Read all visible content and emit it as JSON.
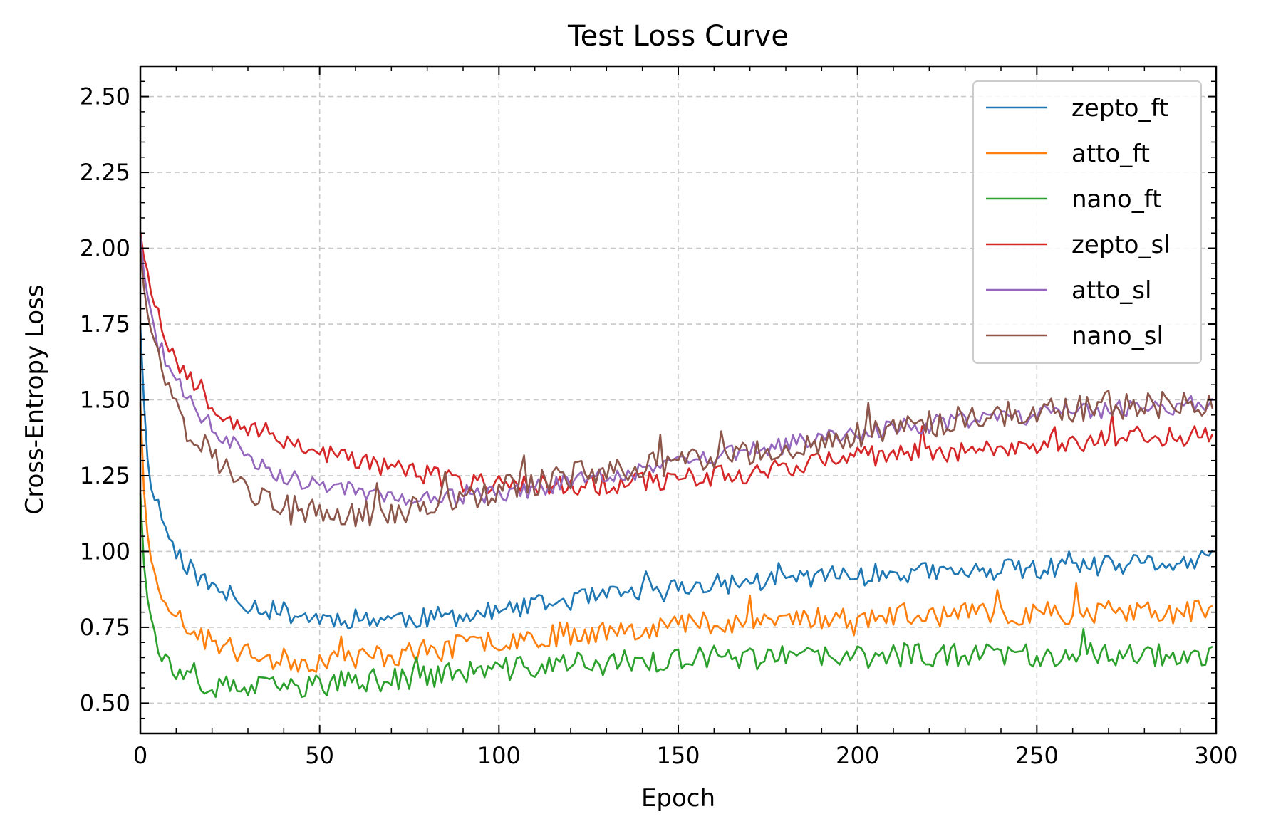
{
  "chart_data": {
    "type": "line",
    "title": "Test Loss Curve",
    "xlabel": "Epoch",
    "ylabel": "Cross-Entropy Loss",
    "xlim": [
      0,
      300
    ],
    "ylim": [
      0.4,
      2.6
    ],
    "xticks": [
      0,
      50,
      100,
      150,
      200,
      250,
      300
    ],
    "xtick_labels": [
      "0",
      "50",
      "100",
      "150",
      "200",
      "250",
      "300"
    ],
    "yticks": [
      0.5,
      0.75,
      1.0,
      1.25,
      1.5,
      1.75,
      2.0,
      2.25,
      2.5
    ],
    "ytick_labels": [
      "0.50",
      "0.75",
      "1.00",
      "1.25",
      "1.50",
      "1.75",
      "2.00",
      "2.25",
      "2.50"
    ],
    "grid": true,
    "legend_position": "upper right",
    "series": [
      {
        "name": "zepto_ft",
        "color": "#1f77b4",
        "noise": 0.035,
        "seed": 11,
        "x": [
          0,
          1,
          2,
          3,
          4,
          5,
          7,
          9,
          12,
          15,
          20,
          25,
          30,
          35,
          40,
          50,
          60,
          70,
          80,
          90,
          100,
          110,
          120,
          130,
          140,
          150,
          160,
          170,
          180,
          190,
          200,
          210,
          220,
          230,
          240,
          250,
          260,
          270,
          280,
          290,
          299
        ],
        "y": [
          1.75,
          1.5,
          1.3,
          1.22,
          1.18,
          1.15,
          1.08,
          1.02,
          0.97,
          0.93,
          0.88,
          0.85,
          0.83,
          0.81,
          0.8,
          0.78,
          0.78,
          0.78,
          0.78,
          0.79,
          0.8,
          0.82,
          0.84,
          0.85,
          0.87,
          0.88,
          0.89,
          0.9,
          0.91,
          0.92,
          0.92,
          0.93,
          0.93,
          0.93,
          0.94,
          0.94,
          0.95,
          0.95,
          0.96,
          0.96,
          0.97
        ]
      },
      {
        "name": "atto_ft",
        "color": "#ff7f0e",
        "noise": 0.04,
        "seed": 23,
        "x": [
          0,
          1,
          2,
          3,
          4,
          5,
          7,
          9,
          12,
          15,
          20,
          25,
          30,
          35,
          40,
          50,
          60,
          70,
          80,
          90,
          100,
          110,
          120,
          130,
          140,
          150,
          160,
          170,
          180,
          190,
          200,
          210,
          220,
          230,
          240,
          250,
          260,
          270,
          280,
          290,
          299
        ],
        "y": [
          1.5,
          1.2,
          1.05,
          0.98,
          0.94,
          0.9,
          0.85,
          0.8,
          0.76,
          0.73,
          0.7,
          0.68,
          0.66,
          0.65,
          0.64,
          0.64,
          0.65,
          0.66,
          0.67,
          0.69,
          0.71,
          0.72,
          0.73,
          0.74,
          0.75,
          0.76,
          0.77,
          0.77,
          0.78,
          0.78,
          0.78,
          0.79,
          0.79,
          0.79,
          0.79,
          0.8,
          0.8,
          0.8,
          0.8,
          0.8,
          0.8
        ]
      },
      {
        "name": "nano_ft",
        "color": "#2ca02c",
        "noise": 0.04,
        "seed": 37,
        "x": [
          0,
          1,
          2,
          3,
          4,
          5,
          7,
          9,
          12,
          15,
          20,
          25,
          30,
          35,
          40,
          50,
          60,
          70,
          80,
          90,
          100,
          110,
          120,
          130,
          140,
          150,
          160,
          170,
          180,
          190,
          200,
          210,
          220,
          230,
          240,
          250,
          260,
          270,
          280,
          290,
          299
        ],
        "y": [
          1.2,
          0.98,
          0.85,
          0.78,
          0.73,
          0.7,
          0.64,
          0.6,
          0.57,
          0.56,
          0.55,
          0.55,
          0.55,
          0.55,
          0.55,
          0.56,
          0.57,
          0.58,
          0.59,
          0.6,
          0.61,
          0.62,
          0.63,
          0.63,
          0.64,
          0.64,
          0.65,
          0.65,
          0.65,
          0.65,
          0.65,
          0.66,
          0.66,
          0.66,
          0.66,
          0.66,
          0.66,
          0.66,
          0.66,
          0.66,
          0.66
        ]
      },
      {
        "name": "zepto_sl",
        "color": "#d62728",
        "noise": 0.035,
        "seed": 53,
        "x": [
          0,
          1,
          2,
          3,
          4,
          5,
          7,
          9,
          12,
          15,
          20,
          25,
          30,
          35,
          40,
          50,
          60,
          70,
          80,
          90,
          100,
          110,
          120,
          130,
          140,
          150,
          160,
          170,
          180,
          190,
          200,
          210,
          220,
          230,
          240,
          250,
          260,
          270,
          280,
          290,
          299
        ],
        "y": [
          2.06,
          1.98,
          1.92,
          1.86,
          1.81,
          1.77,
          1.71,
          1.66,
          1.6,
          1.55,
          1.49,
          1.44,
          1.41,
          1.39,
          1.37,
          1.33,
          1.3,
          1.28,
          1.25,
          1.23,
          1.22,
          1.22,
          1.22,
          1.22,
          1.23,
          1.24,
          1.25,
          1.26,
          1.28,
          1.3,
          1.31,
          1.32,
          1.33,
          1.33,
          1.34,
          1.35,
          1.36,
          1.37,
          1.38,
          1.38,
          1.39
        ]
      },
      {
        "name": "atto_sl",
        "color": "#9467bd",
        "noise": 0.03,
        "seed": 71,
        "x": [
          0,
          1,
          2,
          3,
          4,
          5,
          7,
          9,
          12,
          15,
          20,
          25,
          30,
          35,
          40,
          50,
          60,
          70,
          80,
          90,
          100,
          110,
          120,
          130,
          140,
          150,
          160,
          170,
          180,
          190,
          200,
          210,
          220,
          230,
          240,
          250,
          260,
          270,
          280,
          290,
          299
        ],
        "y": [
          2.05,
          1.92,
          1.84,
          1.78,
          1.73,
          1.69,
          1.63,
          1.58,
          1.52,
          1.47,
          1.41,
          1.36,
          1.32,
          1.28,
          1.25,
          1.22,
          1.2,
          1.18,
          1.17,
          1.18,
          1.19,
          1.21,
          1.23,
          1.25,
          1.27,
          1.29,
          1.31,
          1.33,
          1.35,
          1.37,
          1.39,
          1.41,
          1.42,
          1.43,
          1.44,
          1.45,
          1.46,
          1.47,
          1.48,
          1.48,
          1.49
        ]
      },
      {
        "name": "nano_sl",
        "color": "#8c564b",
        "noise": 0.045,
        "seed": 97,
        "x": [
          0,
          1,
          2,
          3,
          4,
          5,
          7,
          9,
          12,
          15,
          20,
          25,
          30,
          35,
          40,
          50,
          60,
          70,
          80,
          90,
          100,
          110,
          120,
          130,
          140,
          150,
          160,
          170,
          180,
          190,
          200,
          210,
          220,
          230,
          240,
          250,
          260,
          270,
          280,
          290,
          299
        ],
        "y": [
          2.0,
          1.88,
          1.8,
          1.74,
          1.68,
          1.64,
          1.58,
          1.52,
          1.45,
          1.39,
          1.32,
          1.26,
          1.21,
          1.17,
          1.15,
          1.12,
          1.12,
          1.13,
          1.15,
          1.17,
          1.2,
          1.23,
          1.25,
          1.27,
          1.28,
          1.29,
          1.3,
          1.32,
          1.34,
          1.36,
          1.38,
          1.4,
          1.42,
          1.44,
          1.45,
          1.46,
          1.47,
          1.48,
          1.48,
          1.49,
          1.49
        ]
      }
    ]
  }
}
